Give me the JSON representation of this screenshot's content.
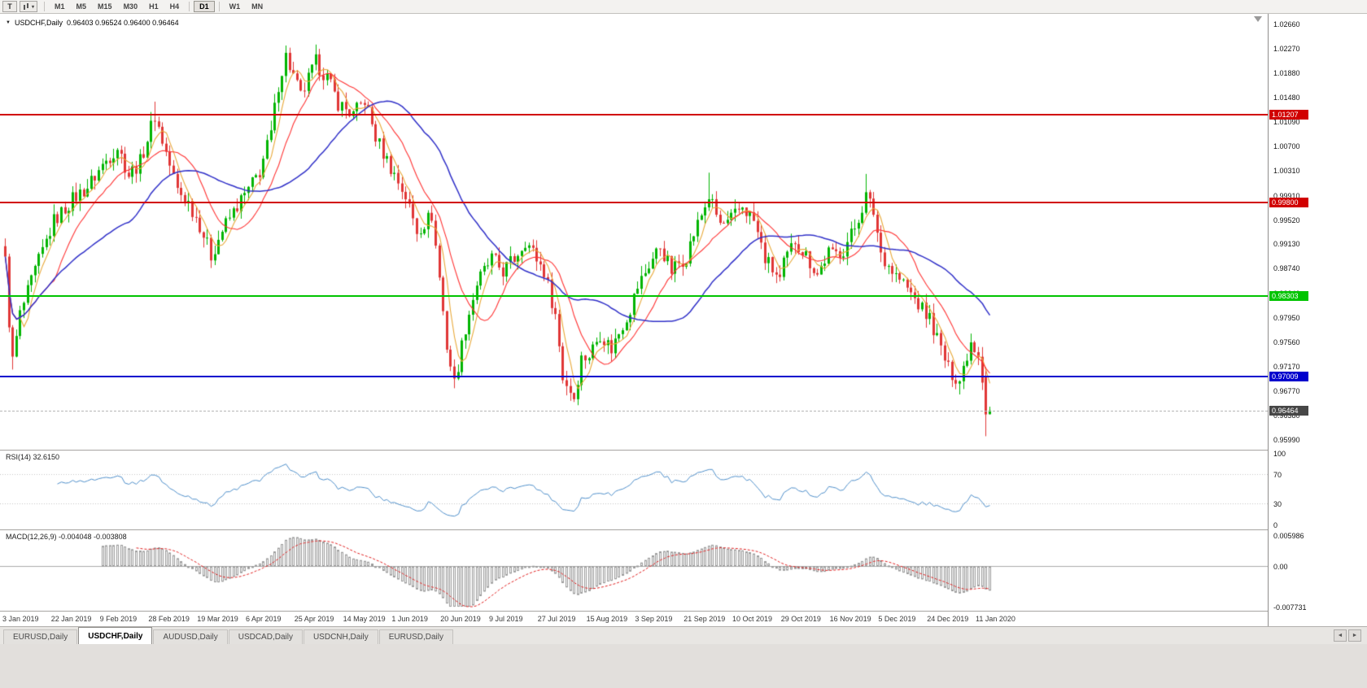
{
  "toolbar": {
    "tool_buttons": [
      {
        "name": "type-tool",
        "glyph": "T"
      },
      {
        "name": "objects-tool",
        "caret": "▾"
      }
    ],
    "timeframes": [
      "M1",
      "M5",
      "M15",
      "M30",
      "H1",
      "H4",
      "D1",
      "W1",
      "MN"
    ],
    "active_timeframe": "D1",
    "separators_after": [
      "H4",
      "D1"
    ]
  },
  "chart": {
    "collapse_icon": "▼",
    "symbol_period": "USDCHF,Daily",
    "ohlc_readout": "0.96403 0.96524 0.96400 0.96464"
  },
  "chart_data": {
    "type": "candlestick",
    "symbol": "USDCHF",
    "period": "Daily",
    "open": "0.96403",
    "high": "0.96524",
    "low": "0.96400",
    "close": "0.96464",
    "price_range": {
      "top": 1.0266,
      "bottom": 0.9599
    },
    "y_axis_labels": [
      "1.02660",
      "1.02270",
      "1.01880",
      "1.01480",
      "1.01090",
      "1.00700",
      "1.00310",
      "0.99910",
      "0.99520",
      "0.99130",
      "0.98740",
      "0.98340",
      "0.97950",
      "0.97560",
      "0.97170",
      "0.96770",
      "0.96380",
      "0.95990"
    ],
    "x_axis_labels": [
      "3 Jan 2019",
      "22 Jan 2019",
      "9 Feb 2019",
      "28 Feb 2019",
      "19 Mar 2019",
      "6 Apr 2019",
      "25 Apr 2019",
      "14 May 2019",
      "1 Jun 2019",
      "20 Jun 2019",
      "9 Jul 2019",
      "27 Jul 2019",
      "15 Aug 2019",
      "3 Sep 2019",
      "21 Sep 2019",
      "10 Oct 2019",
      "29 Oct 2019",
      "16 Nov 2019",
      "5 Dec 2019",
      "24 Dec 2019",
      "11 Jan 2020"
    ],
    "num_candles": 264,
    "candles_per_label": 13,
    "price_keypoints": [
      [
        0,
        0.9885
      ],
      [
        1,
        0.979
      ],
      [
        2,
        0.9725
      ],
      [
        4,
        0.98
      ],
      [
        8,
        0.987
      ],
      [
        13,
        0.995
      ],
      [
        18,
        0.9985
      ],
      [
        22,
        1.0005
      ],
      [
        26,
        1.004
      ],
      [
        30,
        1.007
      ],
      [
        33,
        1.0025
      ],
      [
        36,
        1.0045
      ],
      [
        40,
        1.012
      ],
      [
        43,
        1.006
      ],
      [
        46,
        1.0
      ],
      [
        49,
        0.998
      ],
      [
        52,
        0.9945
      ],
      [
        55,
        0.9895
      ],
      [
        58,
        0.9935
      ],
      [
        62,
        0.9975
      ],
      [
        65,
        1.0
      ],
      [
        68,
        1.003
      ],
      [
        71,
        1.009
      ],
      [
        73,
        1.017
      ],
      [
        75,
        1.0215
      ],
      [
        79,
        1.015
      ],
      [
        83,
        1.0205
      ],
      [
        86,
        1.018
      ],
      [
        89,
        1.014
      ],
      [
        93,
        1.012
      ],
      [
        96,
        1.0145
      ],
      [
        99,
        1.0085
      ],
      [
        101,
        1.006
      ],
      [
        104,
        1.0025
      ],
      [
        107,
        0.999
      ],
      [
        110,
        0.9935
      ],
      [
        114,
        0.996
      ],
      [
        116,
        0.986
      ],
      [
        118,
        0.975
      ],
      [
        120,
        0.969
      ],
      [
        123,
        0.978
      ],
      [
        126,
        0.985
      ],
      [
        130,
        0.989
      ],
      [
        133,
        0.987
      ],
      [
        136,
        0.989
      ],
      [
        139,
        0.992
      ],
      [
        141,
        0.99
      ],
      [
        144,
        0.987
      ],
      [
        147,
        0.98
      ],
      [
        149,
        0.97
      ],
      [
        152,
        0.9668
      ],
      [
        154,
        0.973
      ],
      [
        156,
        0.9735
      ],
      [
        159,
        0.977
      ],
      [
        162,
        0.9745
      ],
      [
        165,
        0.9785
      ],
      [
        167,
        0.981
      ],
      [
        169,
        0.9845
      ],
      [
        172,
        0.988
      ],
      [
        175,
        0.991
      ],
      [
        178,
        0.987
      ],
      [
        182,
        0.9895
      ],
      [
        184,
        0.993
      ],
      [
        188,
        0.999
      ],
      [
        191,
        0.9945
      ],
      [
        193,
        0.9945
      ],
      [
        197,
        0.9975
      ],
      [
        200,
        0.995
      ],
      [
        203,
        0.989
      ],
      [
        207,
        0.9855
      ],
      [
        208,
        0.988
      ],
      [
        211,
        0.992
      ],
      [
        214,
        0.9895
      ],
      [
        217,
        0.9865
      ],
      [
        220,
        0.99
      ],
      [
        221,
        0.9895
      ],
      [
        224,
        0.9905
      ],
      [
        227,
        0.994
      ],
      [
        230,
        0.999
      ],
      [
        232,
        0.9965
      ],
      [
        234,
        0.99
      ],
      [
        237,
        0.987
      ],
      [
        240,
        0.985
      ],
      [
        243,
        0.9825
      ],
      [
        246,
        0.98
      ],
      [
        247,
        0.9795
      ],
      [
        250,
        0.9745
      ],
      [
        252,
        0.9712
      ],
      [
        255,
        0.9695
      ],
      [
        258,
        0.9758
      ],
      [
        260,
        0.974
      ],
      [
        261,
        0.97
      ],
      [
        262,
        0.964
      ],
      [
        263,
        0.9646
      ]
    ],
    "wick_extremes": {
      "highs": [
        [
          40,
          1.0142
        ],
        [
          75,
          1.0232
        ],
        [
          188,
          1.0028
        ],
        [
          230,
          1.0026
        ]
      ],
      "lows": [
        [
          2,
          0.9712
        ],
        [
          120,
          0.9682
        ],
        [
          152,
          0.966
        ],
        [
          255,
          0.9672
        ]
      ]
    },
    "last_candles": [
      {
        "o": 0.97,
        "h": 0.9716,
        "l": 0.9605,
        "c": 0.964
      },
      {
        "o": 0.96403,
        "h": 0.96524,
        "l": 0.964,
        "c": 0.96464
      }
    ],
    "horizontal_lines": [
      {
        "price": 1.01207,
        "label": "1.01207",
        "color": "#d10000",
        "thickness": 2
      },
      {
        "price": 0.998,
        "label": "0.99800",
        "color": "#d10000",
        "thickness": 2
      },
      {
        "price": 0.98303,
        "label": "0.98303",
        "color": "#00c400",
        "thickness": 2
      },
      {
        "price": 0.97009,
        "label": "0.97009",
        "color": "#0000cd",
        "thickness": 2
      }
    ],
    "bid_line": {
      "price": 0.96464,
      "label": "0.96464",
      "tag_color": "#474747"
    },
    "candle_colors": {
      "up": "#00b400",
      "down": "#e03636"
    },
    "moving_averages": [
      {
        "name": "fast-ma",
        "period": 5,
        "color": "#e8a838"
      },
      {
        "name": "medium-ma",
        "period": 13,
        "color": "#ff3232"
      },
      {
        "name": "slow-ma",
        "period": 34,
        "color": "#3030c8"
      }
    ],
    "indicators": {
      "rsi": {
        "label": "RSI(14) 32.6150",
        "period": 14,
        "current": 32.615,
        "levels": [
          70,
          30
        ],
        "scale_labels": [
          "100",
          "70",
          "30",
          "0"
        ],
        "scale_values": [
          100,
          70,
          30,
          0
        ],
        "line_color": "#4f8fca"
      },
      "macd": {
        "label": "MACD(12,26,9) -0.004048 -0.003808",
        "fast": 12,
        "slow": 26,
        "signal": 9,
        "main_current": -0.004048,
        "signal_current": -0.003808,
        "scale": [
          {
            "label": "0.005986",
            "value": 0.005986
          },
          {
            "label": "0.00",
            "value": 0
          },
          {
            "label": "-0.007731",
            "value": -0.007731
          }
        ],
        "histogram_color": "#9a9a9a",
        "signal_color": "#e02020"
      }
    }
  },
  "tabs": {
    "scroll_left": "◄",
    "scroll_right": "►",
    "items": [
      {
        "label": "EURUSD,Daily",
        "active": false
      },
      {
        "label": "USDCHF,Daily",
        "active": true
      },
      {
        "label": "AUDUSD,Daily",
        "active": false
      },
      {
        "label": "USDCAD,Daily",
        "active": false
      },
      {
        "label": "USDCNH,Daily",
        "active": false
      },
      {
        "label": "EURUSD,Daily",
        "active": false
      }
    ]
  }
}
